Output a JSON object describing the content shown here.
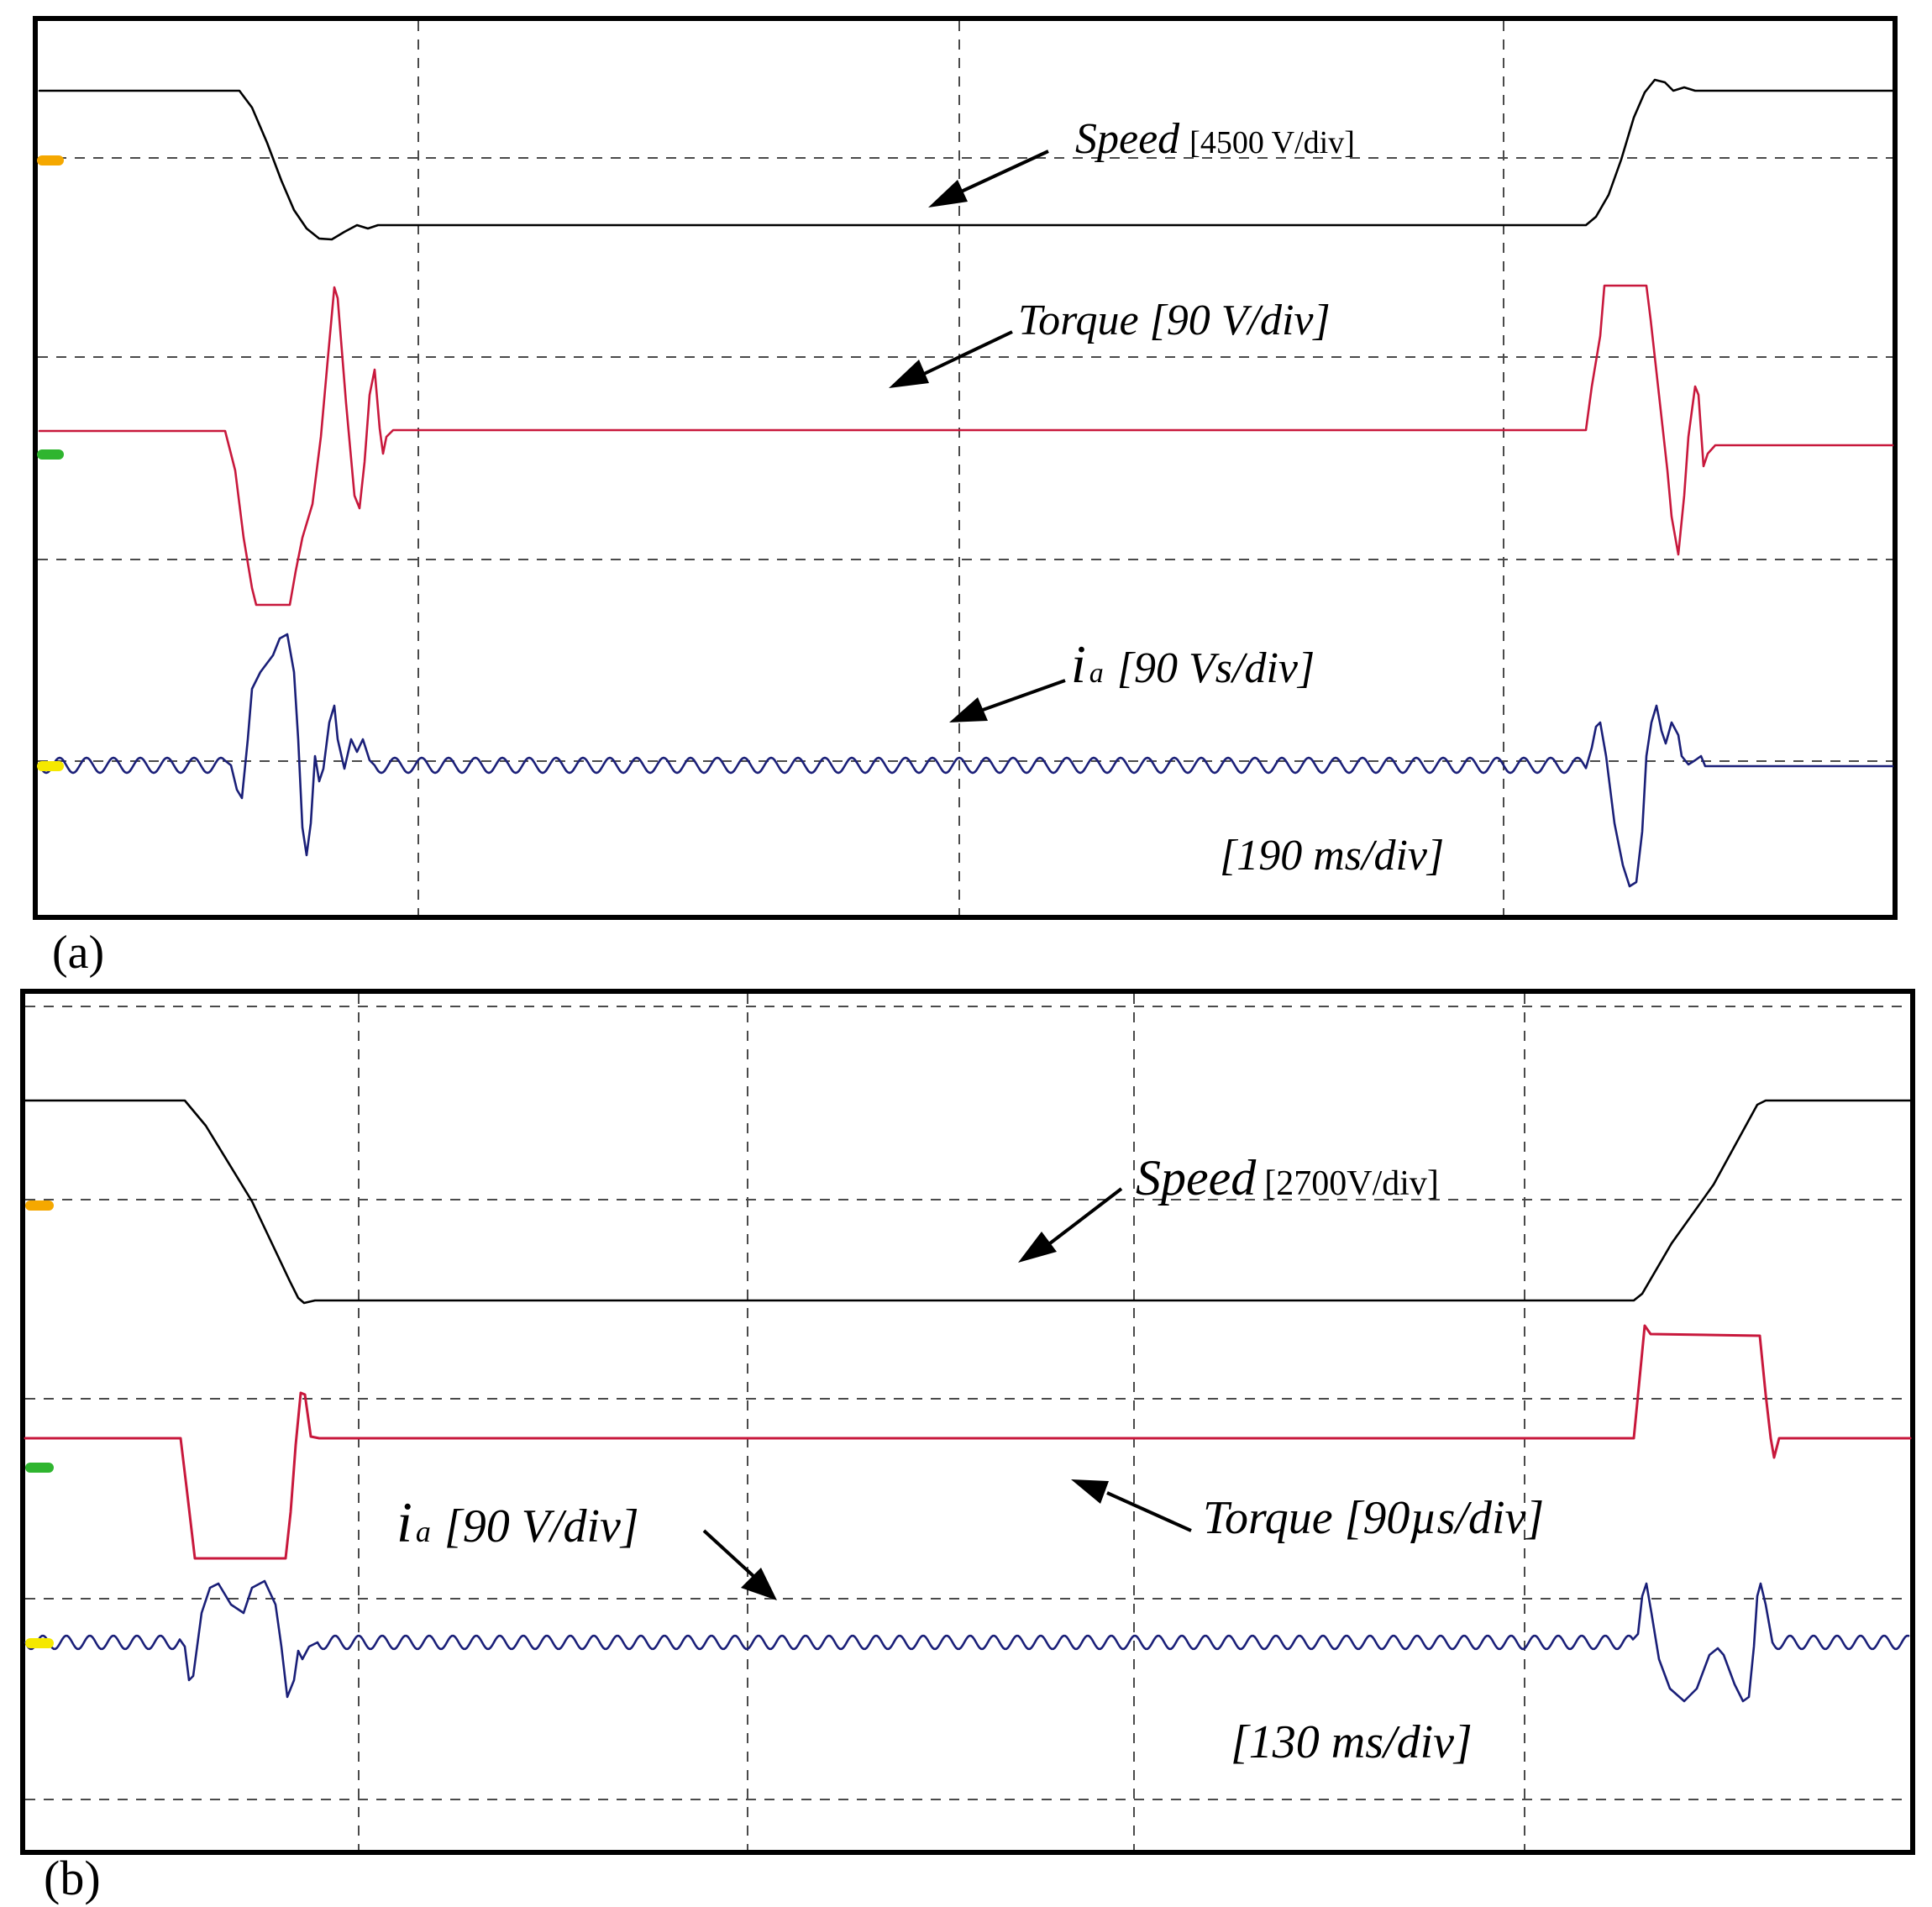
{
  "panels": [
    {
      "id": "a",
      "caption": "(a)",
      "time_label": "[190 ms/div]",
      "labels": {
        "speed_name": "Speed",
        "speed_scale": "[4500 V/div]",
        "torque": "Torque [90 V/div]",
        "current_symbol": "i",
        "current_subscript": "a",
        "current_scale": "[90 Vs/div]"
      }
    },
    {
      "id": "b",
      "caption": "(b)",
      "time_label": "[130 ms/div]",
      "labels": {
        "speed_name": "Speed",
        "speed_scale": "[2700V/div]",
        "torque": "Torque [90µs/div]",
        "current_symbol": "i",
        "current_subscript": "a",
        "current_scale": "[90 V/div]"
      }
    }
  ],
  "colors": {
    "speed": "#000000",
    "torque": "#c8183c",
    "current": "#1a1f78",
    "marker_speed": "#f5a800",
    "marker_torque": "#2fb52f",
    "marker_current": "#f5e800",
    "grid": "#4a4a4a",
    "frame": "#000000"
  },
  "chart_data": [
    {
      "type": "line",
      "panel": "a",
      "grid": true,
      "series": [
        {
          "name": "Speed",
          "x": [
            0,
            0.35,
            0.5,
            0.6,
            0.7,
            0.75,
            0.85,
            1.0,
            7.0,
            7.1,
            7.2,
            7.3,
            7.4,
            8.0
          ],
          "y": [
            1.0,
            1.0,
            0.7,
            0.1,
            -0.1,
            0.0,
            0.0,
            0.0,
            0.0,
            0.3,
            0.9,
            1.05,
            1.0,
            1.0
          ]
        },
        {
          "name": "Torque",
          "x": [
            0,
            0.35,
            0.4,
            0.5,
            0.6,
            0.65,
            0.7,
            0.75,
            0.8,
            0.9,
            1.0,
            7.0,
            7.05,
            7.25,
            7.3,
            7.4,
            7.5,
            7.6,
            8.0
          ],
          "y": [
            0,
            0,
            -0.9,
            -0.9,
            -0.4,
            0.8,
            1.1,
            -0.4,
            0.2,
            0,
            0,
            0,
            0.9,
            0.9,
            -0.6,
            -0.7,
            0.2,
            0,
            0
          ]
        },
        {
          "name": "i_a",
          "x": [
            0,
            0.35,
            0.45,
            0.55,
            0.65,
            0.75,
            0.85,
            1.0,
            6.9,
            7.0,
            7.1,
            7.2,
            7.3,
            7.4,
            8.0
          ],
          "y": [
            0,
            0,
            -0.25,
            0.8,
            -0.6,
            0.4,
            0.1,
            0,
            0,
            0.2,
            -0.8,
            0.4,
            0.15,
            0,
            0
          ]
        }
      ]
    },
    {
      "type": "line",
      "panel": "b",
      "grid": true,
      "series": [
        {
          "name": "Speed",
          "x": [
            0,
            0.4,
            0.7,
            0.75,
            1.0,
            4.1,
            4.35,
            4.7,
            4.8,
            5.0
          ],
          "y": [
            1.0,
            1.0,
            0.05,
            0.0,
            0.0,
            0.0,
            0.7,
            1.0,
            1.0,
            1.0
          ]
        },
        {
          "name": "Torque",
          "x": [
            0,
            0.4,
            0.45,
            0.7,
            0.75,
            0.8,
            1.0,
            4.1,
            4.2,
            4.5,
            4.6,
            4.65,
            5.0
          ],
          "y": [
            0,
            0,
            -0.95,
            -0.95,
            0.3,
            0,
            0,
            0,
            0.7,
            0.7,
            0,
            -0.1,
            0
          ]
        },
        {
          "name": "i_a",
          "x": [
            0,
            0.4,
            0.45,
            0.55,
            0.65,
            0.7,
            0.75,
            0.8,
            1.0,
            4.1,
            4.2,
            4.3,
            4.4,
            4.5,
            4.6,
            5.0
          ],
          "y": [
            0,
            0,
            -0.5,
            0.8,
            0.8,
            -0.8,
            0.2,
            0,
            0,
            0,
            0.8,
            -0.8,
            0.5,
            -0.8,
            0.8,
            0
          ]
        }
      ]
    }
  ]
}
